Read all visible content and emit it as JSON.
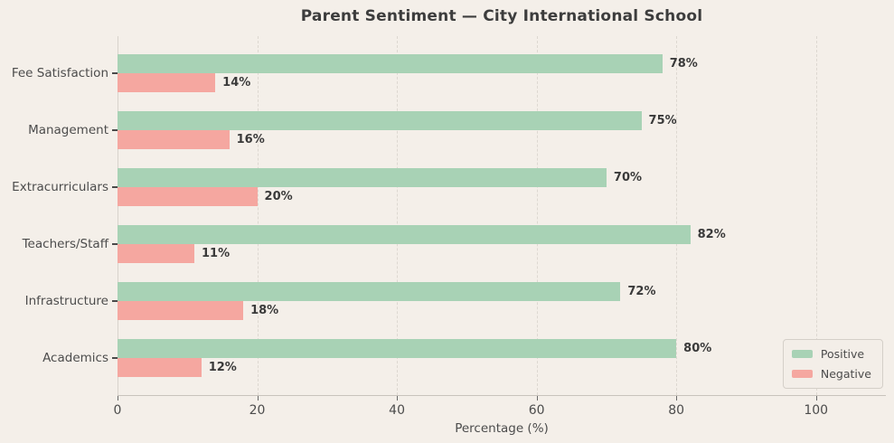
{
  "title": "Parent Sentiment — City International School",
  "colors": {
    "background": "#f4efe9",
    "positive": "#a8d2b5",
    "negative": "#f5a7a0",
    "grid": "#ddd8d1",
    "title_text": "#3d3d3d",
    "axis_text": "#4c4c4c",
    "bar_label_text": "#3a3a3a"
  },
  "chart_data": {
    "type": "bar",
    "orientation": "horizontal",
    "title": "Parent Sentiment — City International School",
    "xlabel": "Percentage (%)",
    "ylabel": "",
    "categories_top_to_bottom": [
      "Fee Satisfaction",
      "Management",
      "Extracurriculars",
      "Teachers/Staff",
      "Infrastructure",
      "Academics"
    ],
    "series": [
      {
        "name": "Positive",
        "values": [
          78,
          75,
          70,
          82,
          72,
          80
        ]
      },
      {
        "name": "Negative",
        "values": [
          14,
          16,
          20,
          11,
          18,
          12
        ]
      }
    ],
    "bar_labels": {
      "Positive": [
        "78%",
        "75%",
        "70%",
        "82%",
        "72%",
        "80%"
      ],
      "Negative": [
        "14%",
        "16%",
        "20%",
        "11%",
        "18%",
        "12%"
      ]
    },
    "xlim": [
      0,
      110
    ],
    "xticks": [
      0,
      20,
      40,
      60,
      80,
      100
    ],
    "grid": true,
    "grid_style": "dashed-vertical",
    "legend_position": "lower right",
    "legend_entries": [
      "Positive",
      "Negative"
    ]
  }
}
